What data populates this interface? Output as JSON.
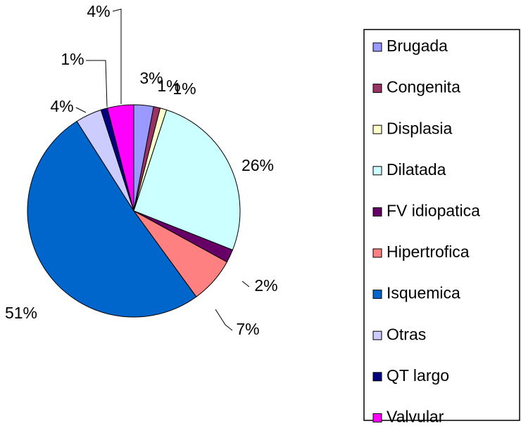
{
  "chart_data": {
    "type": "pie",
    "categories": [
      "Brugada",
      "Congenita",
      "Displasia",
      "Dilatada",
      "FV idiopatica",
      "Hipertrofica",
      "Isquemica",
      "Otras",
      "QT largo",
      "Valvular"
    ],
    "values": [
      3,
      1,
      1,
      26,
      2,
      7,
      51,
      4,
      1,
      4
    ],
    "value_labels": [
      "3%",
      "1%",
      "1%",
      "26%",
      "2%",
      "7%",
      "51%",
      "4%",
      "1%",
      "4%"
    ],
    "colors": [
      "#9999ff",
      "#993366",
      "#ffffcc",
      "#ccffff",
      "#660066",
      "#ff8080",
      "#0066cc",
      "#ccccff",
      "#000080",
      "#ff00ff"
    ],
    "legend": "right"
  }
}
